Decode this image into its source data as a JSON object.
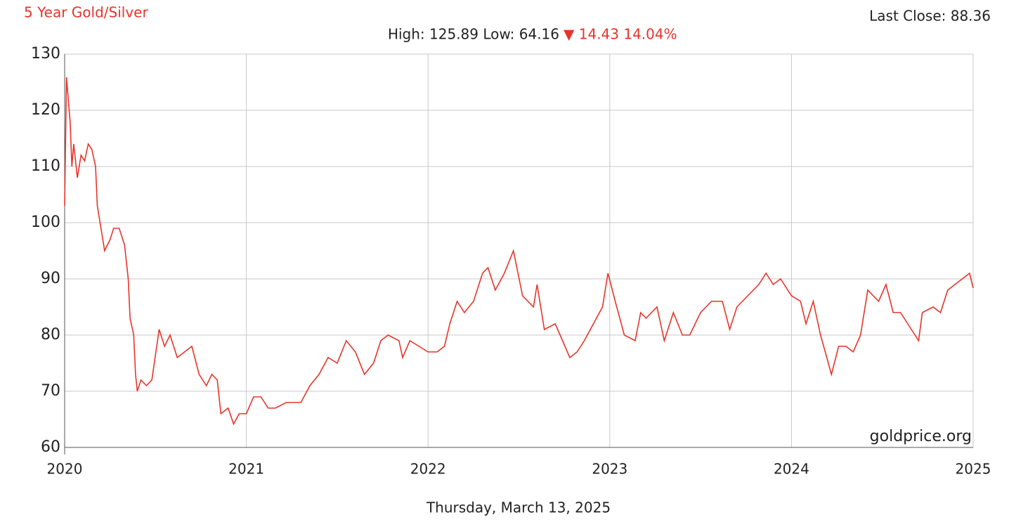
{
  "chart_data": {
    "type": "line",
    "title": "5 Year Gold/Silver",
    "last_close": "Last Close: 88.36",
    "stats": "High: 125.89 Low: 64.16",
    "change": "▼ 14.43 14.04%",
    "watermark": "goldprice.org",
    "date": "Thursday, March 13, 2025",
    "grid": true,
    "xlim": [
      2020,
      2025
    ],
    "xticks": [
      2020,
      2021,
      2022,
      2023,
      2024,
      2025
    ],
    "ylim": [
      60,
      130
    ],
    "yticks": [
      60,
      70,
      80,
      90,
      100,
      110,
      120,
      130
    ],
    "series": [
      {
        "color": "#e8342a",
        "x": [
          2020.0,
          2020.01,
          2020.03,
          2020.04,
          2020.05,
          2020.07,
          2020.09,
          2020.11,
          2020.13,
          2020.15,
          2020.17,
          2020.18,
          2020.19,
          2020.21,
          2020.22,
          2020.25,
          2020.27,
          2020.3,
          2020.33,
          2020.35,
          2020.36,
          2020.38,
          2020.39,
          2020.4,
          2020.42,
          2020.45,
          2020.48,
          2020.52,
          2020.55,
          2020.58,
          2020.62,
          2020.66,
          2020.7,
          2020.74,
          2020.78,
          2020.81,
          2020.84,
          2020.86,
          2020.9,
          2020.93,
          2020.96,
          2021.0,
          2021.04,
          2021.08,
          2021.12,
          2021.16,
          2021.22,
          2021.3,
          2021.35,
          2021.4,
          2021.45,
          2021.5,
          2021.55,
          2021.6,
          2021.65,
          2021.7,
          2021.74,
          2021.78,
          2021.84,
          2021.86,
          2021.9,
          2021.95,
          2022.0,
          2022.05,
          2022.09,
          2022.12,
          2022.16,
          2022.2,
          2022.25,
          2022.3,
          2022.33,
          2022.37,
          2022.42,
          2022.47,
          2022.52,
          2022.58,
          2022.6,
          2022.64,
          2022.7,
          2022.74,
          2022.78,
          2022.82,
          2022.86,
          2022.91,
          2022.96,
          2022.99,
          2023.03,
          2023.08,
          2023.14,
          2023.17,
          2023.2,
          2023.26,
          2023.3,
          2023.35,
          2023.4,
          2023.44,
          2023.5,
          2023.56,
          2023.62,
          2023.66,
          2023.7,
          2023.76,
          2023.82,
          2023.86,
          2023.9,
          2023.94,
          2024.0,
          2024.05,
          2024.08,
          2024.12,
          2024.16,
          2024.22,
          2024.26,
          2024.3,
          2024.34,
          2024.38,
          2024.42,
          2024.48,
          2024.52,
          2024.56,
          2024.6,
          2024.66,
          2024.7,
          2024.72,
          2024.78,
          2024.82,
          2024.86,
          2024.9,
          2024.94,
          2024.98,
          2025.0
        ],
        "values": [
          103,
          125.89,
          118,
          110,
          114,
          108,
          112,
          111,
          114,
          113,
          110,
          103,
          101,
          97,
          95,
          97,
          99,
          99,
          96,
          90,
          83,
          80,
          73,
          70,
          72,
          71,
          72,
          81,
          78,
          80,
          76,
          77,
          78,
          73,
          71,
          73,
          72,
          66,
          67,
          64.16,
          66,
          66,
          69,
          69,
          67,
          67,
          68,
          68,
          71,
          73,
          76,
          75,
          79,
          77,
          73,
          75,
          79,
          80,
          79,
          76,
          79,
          78,
          77,
          77,
          78,
          82,
          86,
          84,
          86,
          91,
          92,
          88,
          91,
          95,
          87,
          85,
          89,
          81,
          82,
          79,
          76,
          77,
          79,
          82,
          85,
          91,
          86,
          80,
          79,
          84,
          83,
          85,
          79,
          84,
          80,
          80,
          84,
          86,
          86,
          81,
          85,
          87,
          89,
          91,
          89,
          90,
          87,
          86,
          82,
          86,
          80,
          73,
          78,
          78,
          77,
          80,
          88,
          86,
          89,
          84,
          84,
          81,
          79,
          84,
          85,
          84,
          88,
          89,
          90,
          91,
          88.36
        ]
      }
    ]
  }
}
